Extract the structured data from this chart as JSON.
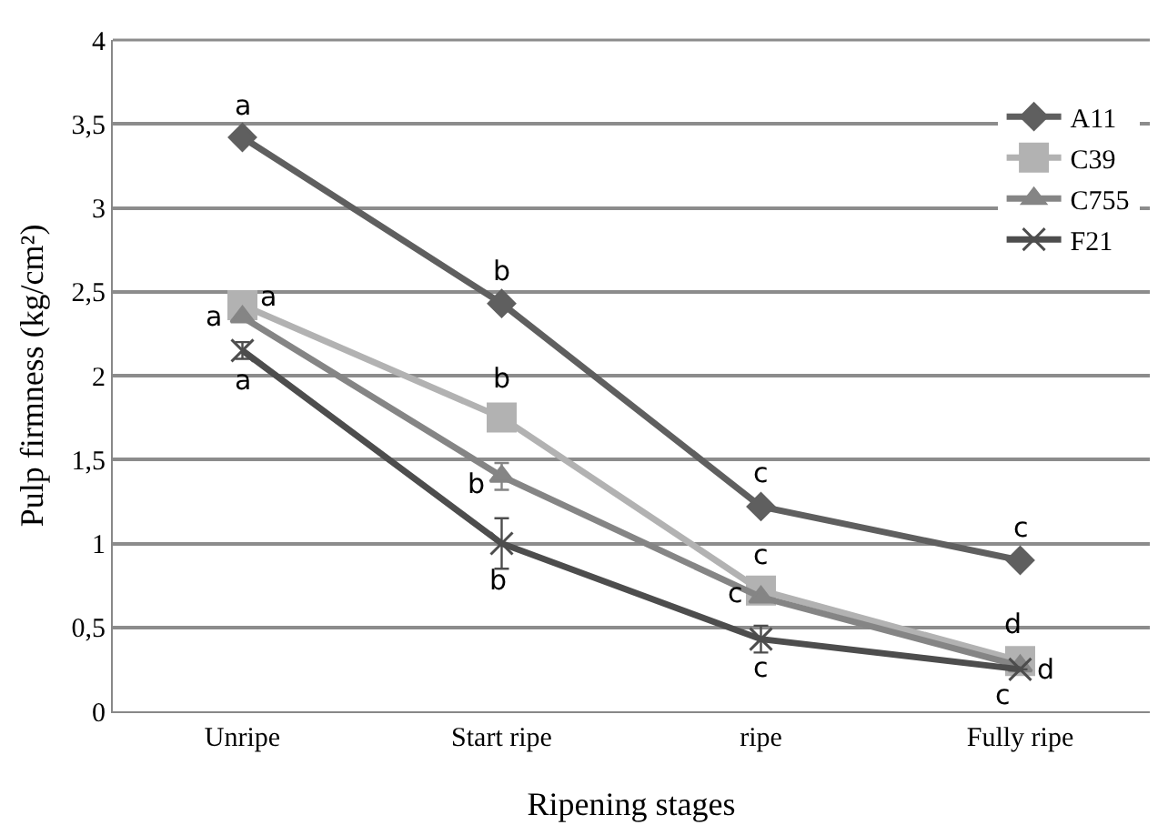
{
  "chart_data": {
    "type": "line",
    "xlabel": "Ripening stages",
    "ylabel": "Pulp firmness (kg/cm²)",
    "categories": [
      "Unripe",
      "Start ripe",
      "ripe",
      "Fully ripe"
    ],
    "series": [
      {
        "name": "A11",
        "color": "#5f5f5f",
        "marker": "diamond",
        "values": [
          3.42,
          2.43,
          1.22,
          0.9
        ]
      },
      {
        "name": "C39",
        "color": "#b2b2b2",
        "marker": "square",
        "values": [
          2.42,
          1.75,
          0.72,
          0.3
        ]
      },
      {
        "name": "C755",
        "color": "#858585",
        "marker": "triangle",
        "values": [
          2.35,
          1.4,
          0.68,
          0.27
        ],
        "errors": [
          null,
          0.08,
          null,
          null
        ]
      },
      {
        "name": "F21",
        "color": "#4d4d4d",
        "marker": "cross",
        "values": [
          2.15,
          1.0,
          0.43,
          0.25
        ],
        "errors": [
          0.05,
          0.15,
          0.08,
          null
        ]
      }
    ],
    "ylim": [
      0,
      4
    ],
    "yticks": [
      {
        "value": 0,
        "label": "0"
      },
      {
        "value": 0.5,
        "label": "0,5"
      },
      {
        "value": 1,
        "label": "1"
      },
      {
        "value": 1.5,
        "label": "1,5"
      },
      {
        "value": 2,
        "label": "2"
      },
      {
        "value": 2.5,
        "label": "2,5"
      },
      {
        "value": 3,
        "label": "3"
      },
      {
        "value": 3.5,
        "label": "3,5"
      },
      {
        "value": 4,
        "label": "4"
      }
    ],
    "grid": "y",
    "legend": "top right",
    "annotations": [
      {
        "text": "a",
        "x": "Unripe",
        "y": 3.42
      },
      {
        "text": "b",
        "x": "Start ripe",
        "y": 2.43
      },
      {
        "text": "c",
        "x": "ripe",
        "y": 1.22
      },
      {
        "text": "c",
        "x": "Fully ripe",
        "y": 0.9
      },
      {
        "text": "a",
        "x": "Unripe",
        "y": 2.42
      },
      {
        "text": "b",
        "x": "Start ripe",
        "y": 1.75
      },
      {
        "text": "c",
        "x": "ripe",
        "y": 0.72
      },
      {
        "text": "d",
        "x": "Fully ripe",
        "y": 0.3
      },
      {
        "text": "a",
        "x": "Unripe",
        "y": 2.35
      },
      {
        "text": "b",
        "x": "Start ripe",
        "y": 1.4
      },
      {
        "text": "c",
        "x": "ripe",
        "y": 0.68
      },
      {
        "text": "d",
        "x": "Fully ripe",
        "y": 0.27
      },
      {
        "text": "a",
        "x": "Unripe",
        "y": 2.15
      },
      {
        "text": "b",
        "x": "Start ripe",
        "y": 1.0
      },
      {
        "text": "c",
        "x": "ripe",
        "y": 0.43
      },
      {
        "text": "c",
        "x": "Fully ripe",
        "y": 0.25
      }
    ]
  }
}
